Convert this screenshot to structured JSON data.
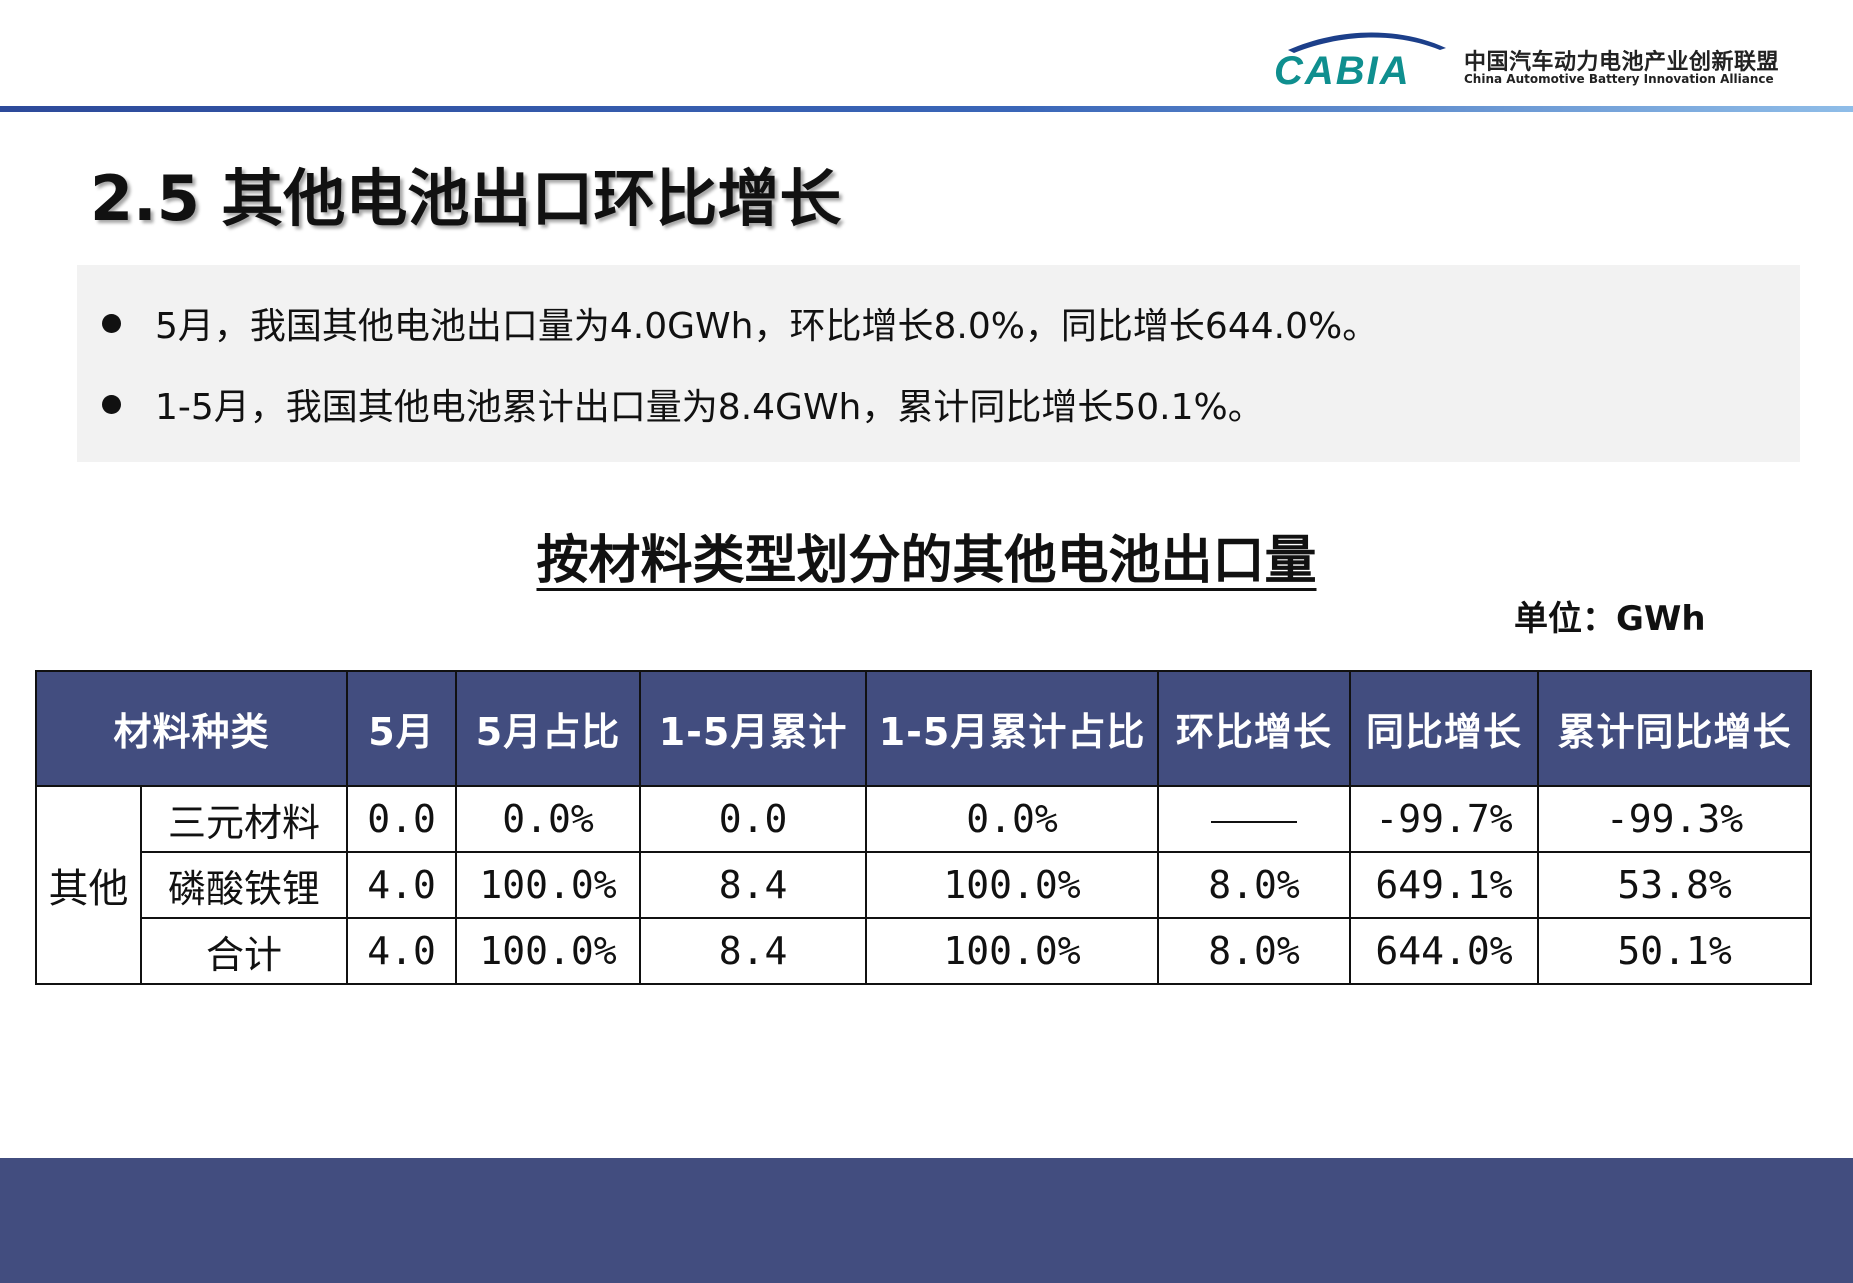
{
  "header": {
    "logo_text": "CABIA",
    "org_name_cn": "中国汽车动力电池产业创新联盟",
    "org_name_en": "China Automotive Battery Innovation Alliance",
    "colors": {
      "brand_teal": "#0f8f8f",
      "rule_blue": "#2d4a9a",
      "band": "#424d7f"
    }
  },
  "page_title": "2.5 其他电池出口环比增长",
  "summary": {
    "bullets": [
      "5月，我国其他电池出口量为4.0GWh，环比增长8.0%，同比增长644.0%。",
      "1-5月，我国其他电池累计出口量为8.4GWh，累计同比增长50.1%。"
    ]
  },
  "table": {
    "title": "按材料类型划分的其他电池出口量",
    "unit": "单位：GWh",
    "headers": [
      "材料种类",
      "5月",
      "5月占比",
      "1-5月累计",
      "1-5月累计占比",
      "环比增长",
      "同比增长",
      "累计同比增长"
    ],
    "group_label": "其他",
    "rows": [
      {
        "type": "三元材料",
        "may": "0.0",
        "may_share": "0.0%",
        "ytd": "0.0",
        "ytd_share": "0.0%",
        "mom": "",
        "yoy": "-99.7%",
        "ytd_yoy": "-99.3%"
      },
      {
        "type": "磷酸铁锂",
        "may": "4.0",
        "may_share": "100.0%",
        "ytd": "8.4",
        "ytd_share": "100.0%",
        "mom": "8.0%",
        "yoy": "649.1%",
        "ytd_yoy": "53.8%"
      },
      {
        "type": "合计",
        "may": "4.0",
        "may_share": "100.0%",
        "ytd": "8.4",
        "ytd_share": "100.0%",
        "mom": "8.0%",
        "yoy": "644.0%",
        "ytd_yoy": "50.1%"
      }
    ]
  }
}
